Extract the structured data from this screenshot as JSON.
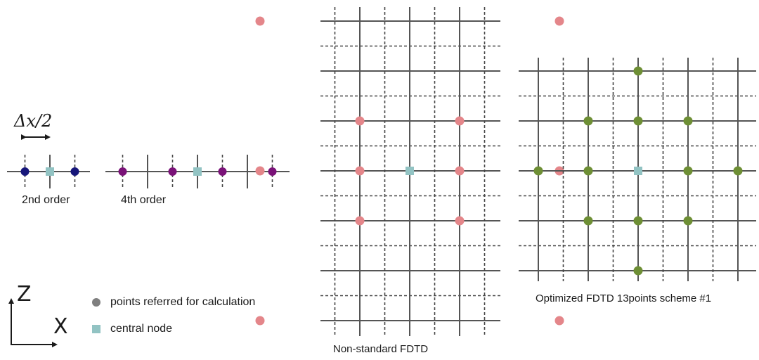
{
  "colors": {
    "solid_line": "#555555",
    "dashed_line": "#444444",
    "order2_point": "#16167a",
    "order4_point": "#7a1278",
    "nonstandard_point": "#e4868a",
    "optimized_point": "#6e8f35",
    "central_node": "#92c3c3",
    "legend_point": "#7f7f7f"
  },
  "labels": {
    "step": "Δx/2",
    "second_order": "2nd order",
    "fourth_order": "4th order",
    "nonstandard": "Non-standard  FDTD",
    "optimized": "Optimized  FDTD  13points  scheme #1"
  },
  "axes": {
    "z": "Z",
    "x": "X"
  },
  "legend": {
    "point_label": "points referred for calculation",
    "central_label": "central node"
  },
  "stencil_2nd": {
    "points_at": [
      -1,
      1
    ],
    "center_at": 0
  },
  "stencil_4th": {
    "points_at": [
      -3,
      -1,
      1,
      3
    ],
    "center_at": 0
  },
  "nonstandard_grid": {
    "points": [
      [
        -3,
        -3
      ],
      [
        3,
        -3
      ],
      [
        -1,
        -1
      ],
      [
        1,
        -1
      ],
      [
        -3,
        0
      ],
      [
        -1,
        0
      ],
      [
        1,
        0
      ],
      [
        3,
        0
      ],
      [
        -1,
        1
      ],
      [
        1,
        1
      ],
      [
        -3,
        3
      ],
      [
        3,
        3
      ]
    ],
    "center": [
      0,
      0
    ]
  },
  "optimized_grid": {
    "points": [
      [
        0,
        -2
      ],
      [
        -1,
        -1
      ],
      [
        0,
        -1
      ],
      [
        1,
        -1
      ],
      [
        -2,
        0
      ],
      [
        -1,
        0
      ],
      [
        1,
        0
      ],
      [
        2,
        0
      ],
      [
        -1,
        1
      ],
      [
        0,
        1
      ],
      [
        1,
        1
      ],
      [
        0,
        2
      ]
    ],
    "center": [
      0,
      0
    ]
  }
}
